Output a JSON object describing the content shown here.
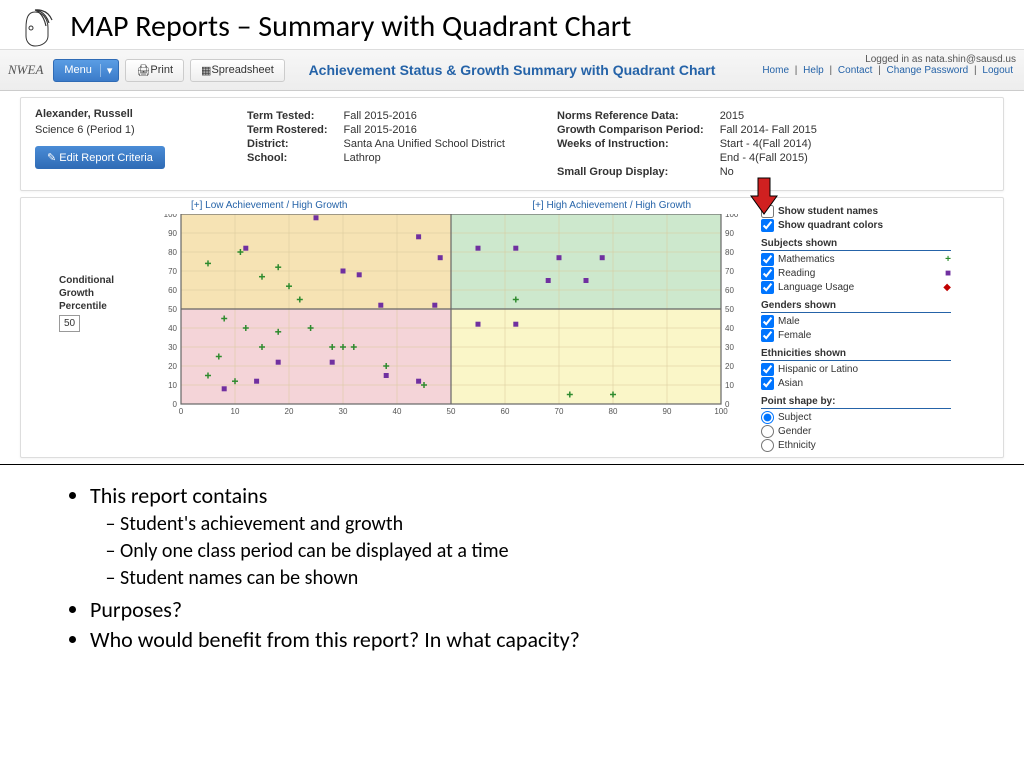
{
  "slide_title": "MAP Reports – Summary with Quadrant Chart",
  "app": {
    "logo": "NWEA",
    "menu_label": "Menu",
    "print_label": "Print",
    "spreadsheet_label": "Spreadsheet",
    "title": "Achievement Status & Growth Summary with Quadrant Chart",
    "logged_in": "Logged in as nata.shin@sausd.us",
    "links": [
      "Home",
      "Help",
      "Contact",
      "Change Password",
      "Logout"
    ]
  },
  "info": {
    "teacher": "Alexander, Russell",
    "class": "Science 6 (Period 1)",
    "edit_btn": "✎ Edit Report Criteria",
    "col2": [
      [
        "Term Tested:",
        "Fall 2015-2016"
      ],
      [
        "Term Rostered:",
        "Fall 2015-2016"
      ],
      [
        "District:",
        "Santa Ana Unified School District"
      ],
      [
        "School:",
        "Lathrop"
      ]
    ],
    "col3": [
      [
        "Norms Reference Data:",
        "2015"
      ],
      [
        "Growth Comparison Period:",
        "Fall 2014- Fall 2015"
      ],
      [
        "Weeks of Instruction:",
        "Start - 4(Fall 2014)"
      ],
      [
        "",
        "End - 4(Fall 2015)"
      ],
      [
        "Small Group Display:",
        "No"
      ]
    ]
  },
  "chart": {
    "type": "scatter-quadrant",
    "xlim": [
      0,
      100
    ],
    "ylim": [
      0,
      100
    ],
    "tick_step": 10,
    "quad_labels": {
      "tl": "[+] Low Achievement / High Growth",
      "tr": "[+] High Achievement / High Growth"
    },
    "y_axis": {
      "title": "Conditional Growth Percentile",
      "mid": "50"
    },
    "quad_colors": {
      "tl": "#f6e3b4",
      "tr": "#cde8cd",
      "bl": "#f4d4d8",
      "br": "#faf6c8"
    },
    "grid_color": "#d8c89a",
    "border_color": "#666",
    "series": {
      "math": {
        "label": "Mathematics",
        "symbol": "plus",
        "color": "#2e8b2e"
      },
      "reading": {
        "label": "Reading",
        "symbol": "square",
        "color": "#7030a0"
      },
      "lang": {
        "label": "Language Usage",
        "symbol": "diamond",
        "color": "#c00000"
      }
    },
    "points": [
      {
        "s": "math",
        "x": 5,
        "y": 74
      },
      {
        "s": "math",
        "x": 11,
        "y": 80
      },
      {
        "s": "math",
        "x": 15,
        "y": 67
      },
      {
        "s": "math",
        "x": 18,
        "y": 72
      },
      {
        "s": "math",
        "x": 22,
        "y": 55
      },
      {
        "s": "math",
        "x": 20,
        "y": 62
      },
      {
        "s": "math",
        "x": 8,
        "y": 45
      },
      {
        "s": "math",
        "x": 12,
        "y": 40
      },
      {
        "s": "math",
        "x": 18,
        "y": 38
      },
      {
        "s": "math",
        "x": 24,
        "y": 40
      },
      {
        "s": "math",
        "x": 28,
        "y": 30
      },
      {
        "s": "math",
        "x": 30,
        "y": 30
      },
      {
        "s": "math",
        "x": 32,
        "y": 30
      },
      {
        "s": "math",
        "x": 15,
        "y": 30
      },
      {
        "s": "math",
        "x": 7,
        "y": 25
      },
      {
        "s": "math",
        "x": 5,
        "y": 15
      },
      {
        "s": "math",
        "x": 10,
        "y": 12
      },
      {
        "s": "math",
        "x": 38,
        "y": 20
      },
      {
        "s": "math",
        "x": 45,
        "y": 10
      },
      {
        "s": "math",
        "x": 62,
        "y": 55
      },
      {
        "s": "math",
        "x": 72,
        "y": 5
      },
      {
        "s": "math",
        "x": 80,
        "y": 5
      },
      {
        "s": "reading",
        "x": 25,
        "y": 98
      },
      {
        "s": "reading",
        "x": 12,
        "y": 82
      },
      {
        "s": "reading",
        "x": 30,
        "y": 70
      },
      {
        "s": "reading",
        "x": 33,
        "y": 68
      },
      {
        "s": "reading",
        "x": 44,
        "y": 88
      },
      {
        "s": "reading",
        "x": 48,
        "y": 77
      },
      {
        "s": "reading",
        "x": 55,
        "y": 82
      },
      {
        "s": "reading",
        "x": 62,
        "y": 82
      },
      {
        "s": "reading",
        "x": 70,
        "y": 77
      },
      {
        "s": "reading",
        "x": 78,
        "y": 77
      },
      {
        "s": "reading",
        "x": 68,
        "y": 65
      },
      {
        "s": "reading",
        "x": 75,
        "y": 65
      },
      {
        "s": "reading",
        "x": 37,
        "y": 52
      },
      {
        "s": "reading",
        "x": 47,
        "y": 52
      },
      {
        "s": "reading",
        "x": 55,
        "y": 42
      },
      {
        "s": "reading",
        "x": 62,
        "y": 42
      },
      {
        "s": "reading",
        "x": 18,
        "y": 22
      },
      {
        "s": "reading",
        "x": 28,
        "y": 22
      },
      {
        "s": "reading",
        "x": 38,
        "y": 15
      },
      {
        "s": "reading",
        "x": 44,
        "y": 12
      },
      {
        "s": "reading",
        "x": 14,
        "y": 12
      },
      {
        "s": "reading",
        "x": 8,
        "y": 8
      }
    ]
  },
  "legend": {
    "show_names": "Show student names",
    "show_colors": "Show quadrant colors",
    "subjects_title": "Subjects shown",
    "genders_title": "Genders shown",
    "genders": [
      "Male",
      "Female"
    ],
    "eth_title": "Ethnicities shown",
    "eths": [
      "Hispanic or Latino",
      "Asian"
    ],
    "shape_title": "Point shape by:",
    "shapes": [
      "Subject",
      "Gender",
      "Ethnicity"
    ]
  },
  "bullets": {
    "l1a": "This report contains",
    "l2a": "Student's achievement and growth",
    "l2b": "Only one class period can be displayed at a time",
    "l2c": "Student names can be shown",
    "l1b": "Purposes?",
    "l1c": "Who would benefit from this report? In what capacity?"
  }
}
